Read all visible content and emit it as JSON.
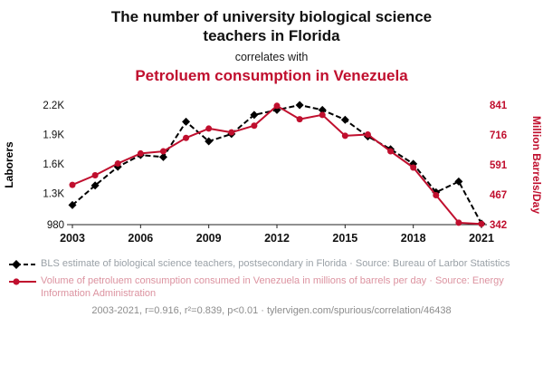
{
  "title": {
    "line1": "The number of university biological science teachers in Florida",
    "connector": "correlates with",
    "line2": "Petroluem consumption in Venezuela"
  },
  "colors": {
    "series_black": "#000000",
    "series_red": "#c00f2e",
    "axis_text": "#111111",
    "legend_gray_text": "#9aa1a7",
    "legend_red_text": "#dc93a0",
    "footer_text": "#8c8c8c"
  },
  "chart_data": {
    "type": "line",
    "x": [
      2003,
      2004,
      2005,
      2006,
      2007,
      2008,
      2009,
      2010,
      2011,
      2012,
      2013,
      2014,
      2015,
      2016,
      2017,
      2018,
      2019,
      2020,
      2021
    ],
    "x_ticks": [
      2003,
      2006,
      2009,
      2012,
      2015,
      2018,
      2021
    ],
    "left_axis": {
      "label": "Laborers",
      "ticks": [
        980,
        1300,
        1600,
        1900,
        2200
      ],
      "tick_labels": [
        "980",
        "1.3K",
        "1.6K",
        "1.9K",
        "2.2K"
      ],
      "range": [
        980,
        2200
      ]
    },
    "right_axis": {
      "label": "Million Barrels/Day",
      "ticks": [
        342,
        467,
        591,
        716,
        841
      ],
      "tick_labels": [
        "342",
        "467",
        "591",
        "716",
        "841"
      ],
      "range": [
        342,
        841
      ]
    },
    "series": [
      {
        "name": "BLS estimate of biological science teachers, postsecondary in Florida",
        "axis": "left",
        "color": "#000000",
        "style": "dashed-diamond",
        "values": [
          1180,
          1380,
          1570,
          1690,
          1670,
          2030,
          1830,
          1905,
          2100,
          2150,
          2200,
          2150,
          2050,
          1880,
          1750,
          1600,
          1310,
          1420,
          990
        ]
      },
      {
        "name": "Volume of petroluem consumption consumed in Venezuela",
        "axis": "right",
        "color": "#c00f2e",
        "style": "solid-circle",
        "values": [
          508,
          548,
          597,
          639,
          648,
          704,
          743,
          727,
          755,
          838,
          782,
          800,
          713,
          718,
          648,
          580,
          465,
          350,
          345
        ]
      }
    ]
  },
  "legend": [
    {
      "label": "BLS estimate of biological science teachers, postsecondary in Florida · Source: Bureau of Larbor Statistics"
    },
    {
      "label": "Volume of petroluem consumption consumed in Venezuela in millions of barrels per day · Source: Energy Information Administration"
    }
  ],
  "footer": "2003-2021, r=0.916, r²=0.839, p<0.01 · tylervigen.com/spurious/correlation/46438"
}
